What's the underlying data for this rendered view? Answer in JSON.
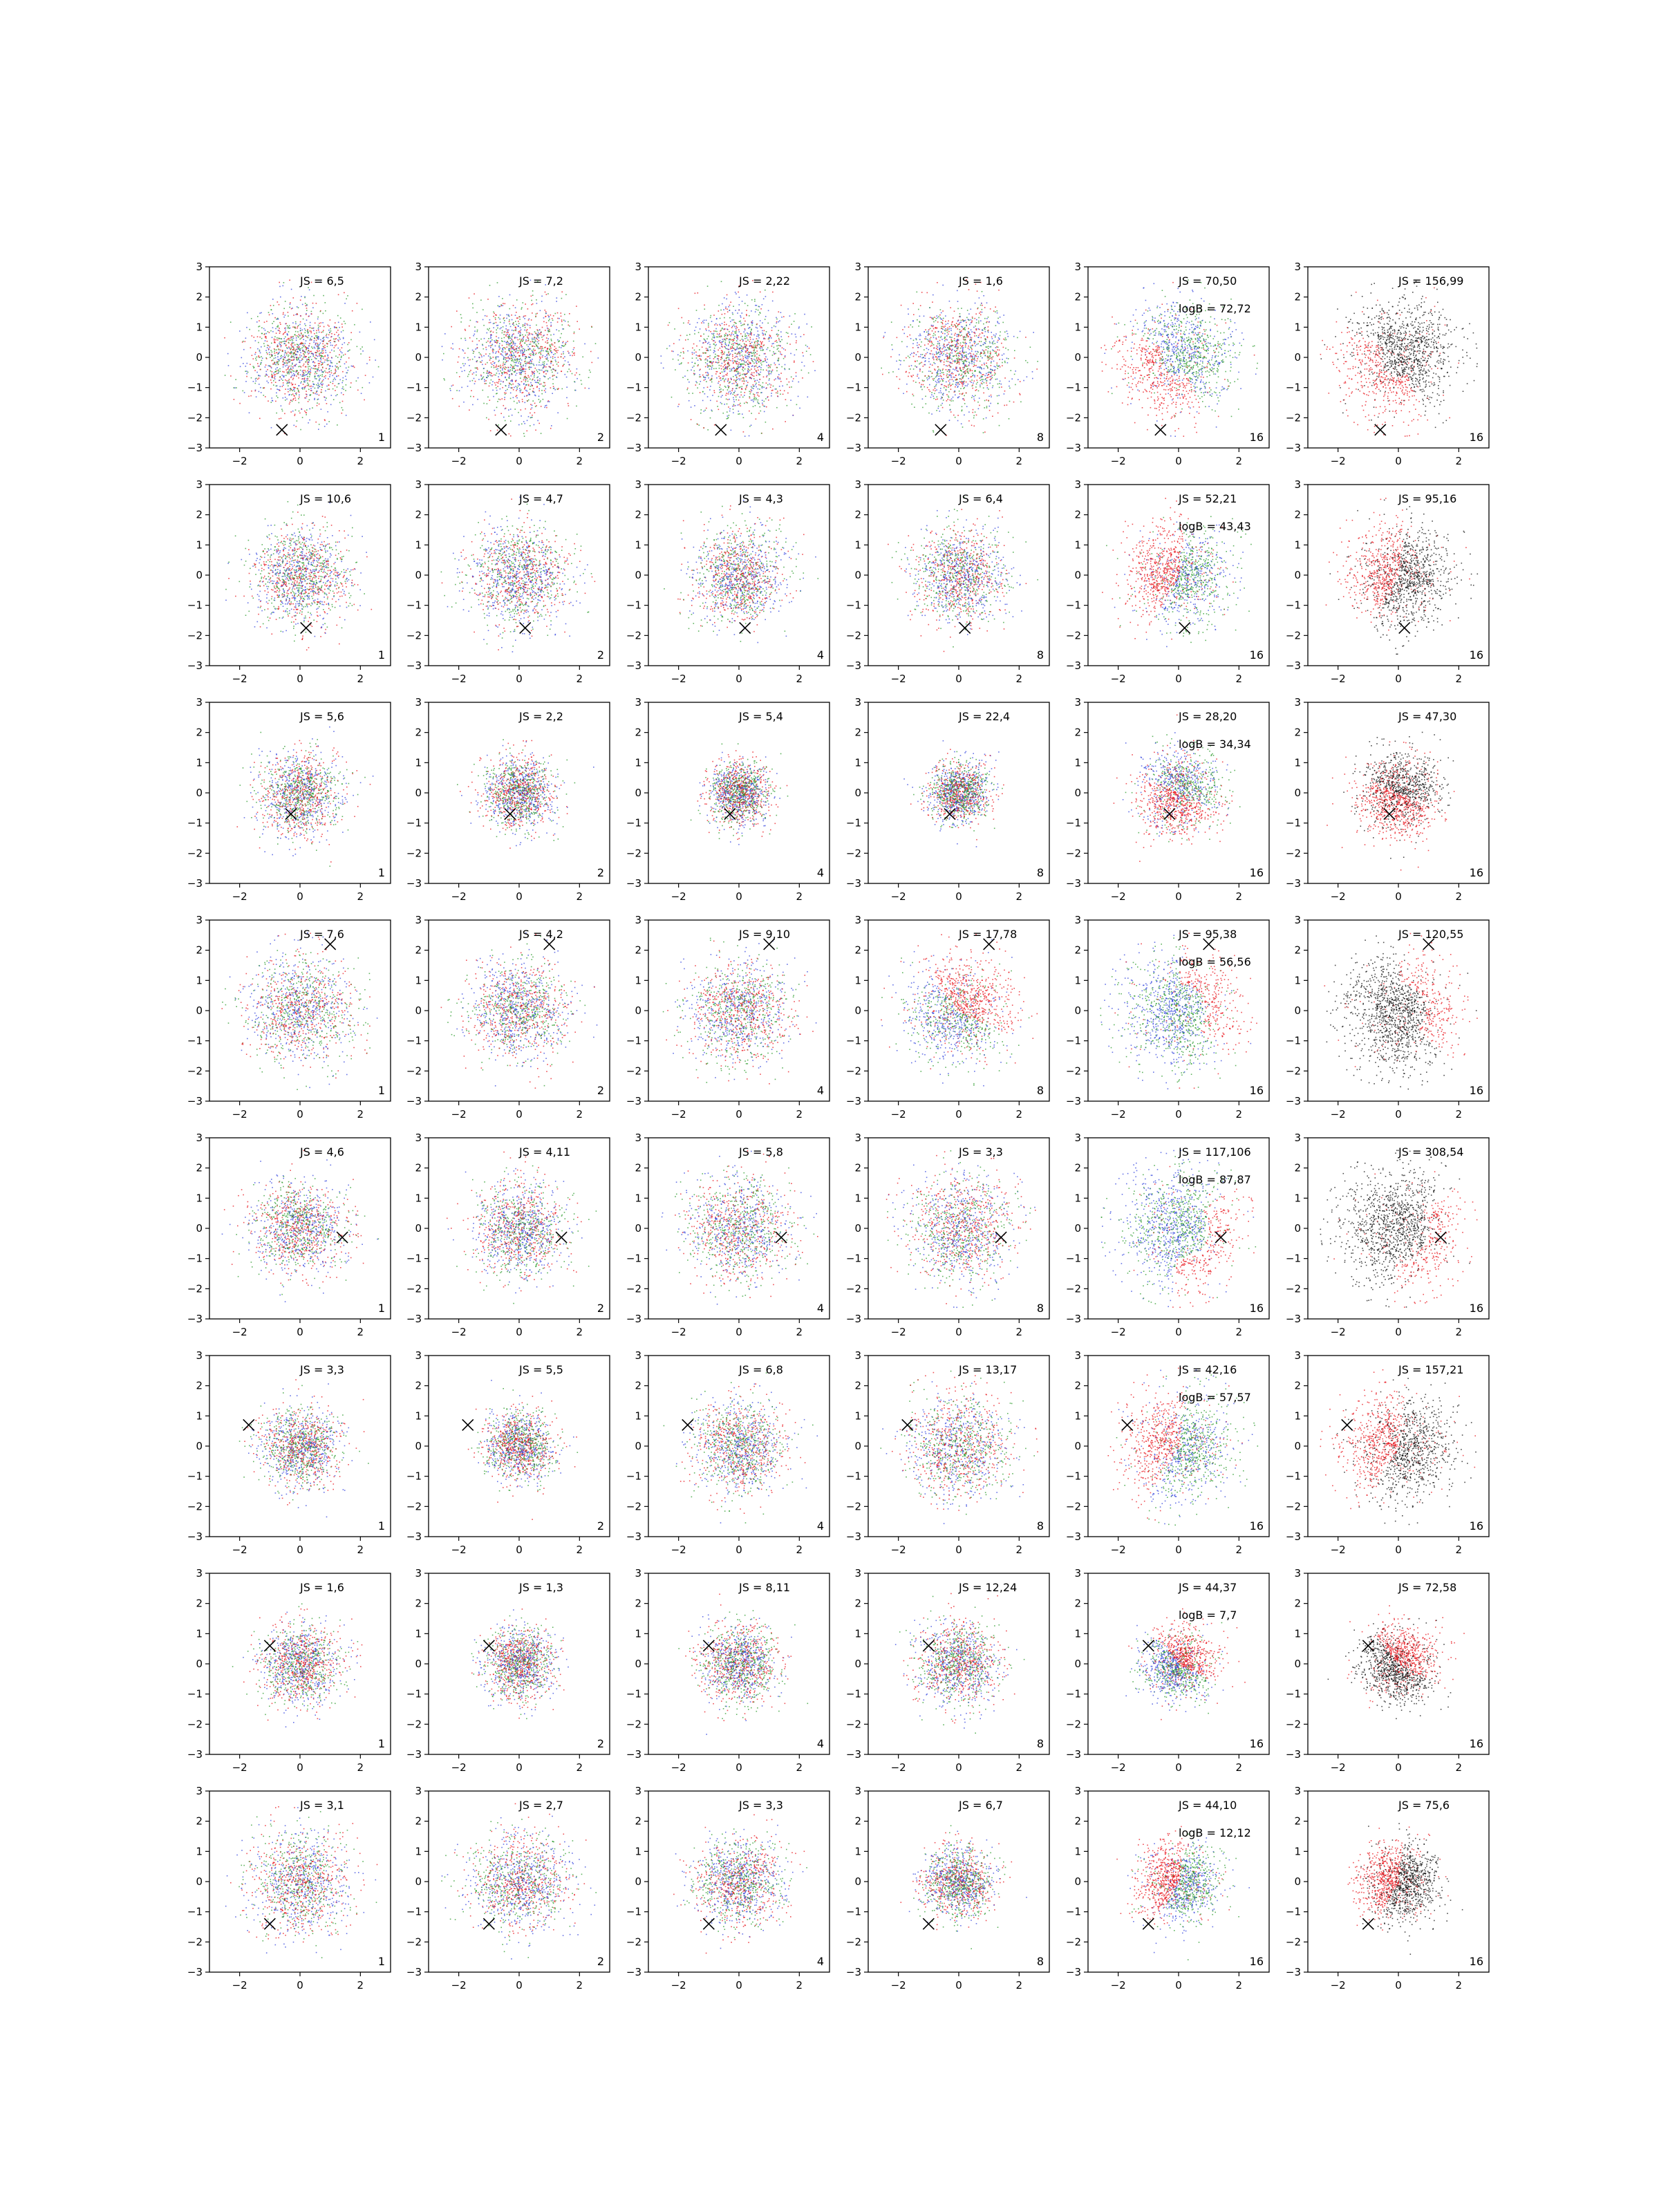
{
  "chart_data": {
    "type": "scatter",
    "rows": 8,
    "cols": 6,
    "xlim": [
      -3,
      3
    ],
    "ylim": [
      -3,
      3
    ],
    "xticks": [
      -2,
      0,
      2
    ],
    "yticks": [
      -3,
      -2,
      -1,
      0,
      1,
      2,
      3
    ],
    "tick_labels_x": [
      "−2",
      "0",
      "2"
    ],
    "tick_labels_y": [
      "−3",
      "−2",
      "−1",
      "0",
      "1",
      "2",
      "3"
    ],
    "grid": false,
    "legend": "none",
    "series_colors": {
      "red": "#e8141c",
      "green": "#2a9a2a",
      "blue": "#3344dd",
      "black": "#111111"
    },
    "marker_symbol": "x",
    "panel_counts": [
      "1",
      "2",
      "4",
      "8",
      "16",
      "16"
    ],
    "panels": [
      {
        "row": 0,
        "col": 0,
        "js": "JS = 6,5",
        "logB": "",
        "count": "1",
        "marker": [
          -0.6,
          -2.4
        ],
        "mode": "mixed",
        "spread": 1.2,
        "pattern": "uniform"
      },
      {
        "row": 0,
        "col": 1,
        "js": "JS = 7,2",
        "logB": "",
        "count": "2",
        "marker": [
          -0.6,
          -2.4
        ],
        "mode": "mixed",
        "spread": 1.25,
        "pattern": "uniform"
      },
      {
        "row": 0,
        "col": 2,
        "js": "JS = 2,22",
        "logB": "",
        "count": "4",
        "marker": [
          -0.6,
          -2.4
        ],
        "mode": "mixed",
        "spread": 1.25,
        "pattern": "uniform"
      },
      {
        "row": 0,
        "col": 3,
        "js": "JS = 1,6",
        "logB": "",
        "count": "8",
        "marker": [
          -0.6,
          -2.4
        ],
        "mode": "mixed",
        "spread": 1.2,
        "pattern": "uniform"
      },
      {
        "row": 0,
        "col": 4,
        "js": "JS = 70,50",
        "logB": "logB = 72,72",
        "count": "16",
        "marker": [
          -0.6,
          -2.4
        ],
        "mode": "cluster",
        "spread": 1.25,
        "pattern": "crescent-lowerleft"
      },
      {
        "row": 0,
        "col": 5,
        "js": "JS = 156,99",
        "logB": "",
        "count": "16",
        "marker": [
          -0.6,
          -2.4
        ],
        "mode": "redblack",
        "spread": 1.25,
        "pattern": "crescent-lowerleft"
      },
      {
        "row": 1,
        "col": 0,
        "js": "JS = 10,6",
        "logB": "",
        "count": "1",
        "marker": [
          0.2,
          -1.75
        ],
        "mode": "mixed",
        "spread": 1.1,
        "pattern": "uniform"
      },
      {
        "row": 1,
        "col": 1,
        "js": "JS = 4,7",
        "logB": "",
        "count": "2",
        "marker": [
          0.2,
          -1.75
        ],
        "mode": "mixed",
        "spread": 1.15,
        "pattern": "uniform"
      },
      {
        "row": 1,
        "col": 2,
        "js": "JS = 4,3",
        "logB": "",
        "count": "4",
        "marker": [
          0.2,
          -1.75
        ],
        "mode": "mixed",
        "spread": 1.05,
        "pattern": "uniform"
      },
      {
        "row": 1,
        "col": 3,
        "js": "JS = 6,4",
        "logB": "",
        "count": "8",
        "marker": [
          0.2,
          -1.75
        ],
        "mode": "mixed",
        "spread": 1.05,
        "pattern": "uniform"
      },
      {
        "row": 1,
        "col": 4,
        "js": "JS = 52,21",
        "logB": "logB = 43,43",
        "count": "16",
        "marker": [
          0.2,
          -1.75
        ],
        "mode": "cluster",
        "spread": 1.1,
        "pattern": "left"
      },
      {
        "row": 1,
        "col": 5,
        "js": "JS = 95,16",
        "logB": "",
        "count": "16",
        "marker": [
          0.2,
          -1.75
        ],
        "mode": "redblack",
        "spread": 1.1,
        "pattern": "left"
      },
      {
        "row": 2,
        "col": 0,
        "js": "JS = 5,6",
        "logB": "",
        "count": "1",
        "marker": [
          -0.3,
          -0.7
        ],
        "mode": "mixed",
        "spread": 0.95,
        "pattern": "uniform"
      },
      {
        "row": 2,
        "col": 1,
        "js": "JS = 2,2",
        "logB": "",
        "count": "2",
        "marker": [
          -0.3,
          -0.7
        ],
        "mode": "mixed",
        "spread": 0.8,
        "pattern": "uniform"
      },
      {
        "row": 2,
        "col": 2,
        "js": "JS = 5,4",
        "logB": "",
        "count": "4",
        "marker": [
          -0.3,
          -0.7
        ],
        "mode": "mixed",
        "spread": 0.7,
        "pattern": "uniform"
      },
      {
        "row": 2,
        "col": 3,
        "js": "JS = 22,4",
        "logB": "",
        "count": "8",
        "marker": [
          -0.3,
          -0.7
        ],
        "mode": "mixed",
        "spread": 0.7,
        "pattern": "uniform"
      },
      {
        "row": 2,
        "col": 4,
        "js": "JS = 28,20",
        "logB": "logB = 34,34",
        "count": "16",
        "marker": [
          -0.3,
          -0.7
        ],
        "mode": "cluster",
        "spread": 0.95,
        "pattern": "lowerleft"
      },
      {
        "row": 2,
        "col": 5,
        "js": "JS = 47,30",
        "logB": "",
        "count": "16",
        "marker": [
          -0.3,
          -0.7
        ],
        "mode": "redblack",
        "spread": 0.95,
        "pattern": "lowerleft"
      },
      {
        "row": 3,
        "col": 0,
        "js": "JS = 7,6",
        "logB": "",
        "count": "1",
        "marker": [
          1.0,
          2.2
        ],
        "mode": "mixed",
        "spread": 1.2,
        "pattern": "uniform"
      },
      {
        "row": 3,
        "col": 1,
        "js": "JS = 4,2",
        "logB": "",
        "count": "2",
        "marker": [
          1.0,
          2.2
        ],
        "mode": "mixed",
        "spread": 1.15,
        "pattern": "uniform"
      },
      {
        "row": 3,
        "col": 2,
        "js": "JS = 9,10",
        "logB": "",
        "count": "4",
        "marker": [
          1.0,
          2.2
        ],
        "mode": "mixed",
        "spread": 1.15,
        "pattern": "uniform"
      },
      {
        "row": 3,
        "col": 3,
        "js": "JS = 17,78",
        "logB": "",
        "count": "8",
        "marker": [
          1.0,
          2.2
        ],
        "mode": "cluster",
        "spread": 1.2,
        "pattern": "upperright"
      },
      {
        "row": 3,
        "col": 4,
        "js": "JS = 95,38",
        "logB": "logB = 56,56",
        "count": "16",
        "marker": [
          1.0,
          2.2
        ],
        "mode": "cluster",
        "spread": 1.25,
        "pattern": "crescent-right"
      },
      {
        "row": 3,
        "col": 5,
        "js": "JS = 120,55",
        "logB": "",
        "count": "16",
        "marker": [
          1.0,
          2.2
        ],
        "mode": "redblack",
        "spread": 1.25,
        "pattern": "crescent-right"
      },
      {
        "row": 4,
        "col": 0,
        "js": "JS = 4,6",
        "logB": "",
        "count": "1",
        "marker": [
          1.4,
          -0.3
        ],
        "mode": "mixed",
        "spread": 1.05,
        "pattern": "uniform"
      },
      {
        "row": 4,
        "col": 1,
        "js": "JS = 4,11",
        "logB": "",
        "count": "2",
        "marker": [
          1.4,
          -0.3
        ],
        "mode": "mixed",
        "spread": 1.05,
        "pattern": "uniform"
      },
      {
        "row": 4,
        "col": 2,
        "js": "JS = 5,8",
        "logB": "",
        "count": "4",
        "marker": [
          1.4,
          -0.3
        ],
        "mode": "mixed",
        "spread": 1.2,
        "pattern": "uniform"
      },
      {
        "row": 4,
        "col": 3,
        "js": "JS = 3,3",
        "logB": "",
        "count": "8",
        "marker": [
          1.4,
          -0.3
        ],
        "mode": "mixed",
        "spread": 1.2,
        "pattern": "uniform"
      },
      {
        "row": 4,
        "col": 4,
        "js": "JS = 117,106",
        "logB": "logB = 87,87",
        "count": "16",
        "marker": [
          1.4,
          -0.3
        ],
        "mode": "cluster",
        "spread": 1.35,
        "pattern": "crescent-right-low"
      },
      {
        "row": 4,
        "col": 5,
        "js": "JS = 308,54",
        "logB": "",
        "count": "16",
        "marker": [
          1.4,
          -0.3
        ],
        "mode": "redblack",
        "spread": 1.35,
        "pattern": "crescent-right-low"
      },
      {
        "row": 5,
        "col": 0,
        "js": "JS = 3,3",
        "logB": "",
        "count": "1",
        "marker": [
          -1.7,
          0.7
        ],
        "mode": "mixed",
        "spread": 0.9,
        "pattern": "uniform"
      },
      {
        "row": 5,
        "col": 1,
        "js": "JS = 5,5",
        "logB": "",
        "count": "2",
        "marker": [
          -1.7,
          0.7
        ],
        "mode": "mixed",
        "spread": 0.8,
        "pattern": "uniform"
      },
      {
        "row": 5,
        "col": 2,
        "js": "JS = 6,8",
        "logB": "",
        "count": "4",
        "marker": [
          -1.7,
          0.7
        ],
        "mode": "mixed",
        "spread": 1.05,
        "pattern": "uniform"
      },
      {
        "row": 5,
        "col": 3,
        "js": "JS = 13,17",
        "logB": "",
        "count": "8",
        "marker": [
          -1.7,
          0.7
        ],
        "mode": "mixed",
        "spread": 1.2,
        "pattern": "uniform"
      },
      {
        "row": 5,
        "col": 4,
        "js": "JS = 42,16",
        "logB": "logB = 57,57",
        "count": "16",
        "marker": [
          -1.7,
          0.7
        ],
        "mode": "cluster",
        "spread": 1.2,
        "pattern": "left"
      },
      {
        "row": 5,
        "col": 5,
        "js": "JS = 157,21",
        "logB": "",
        "count": "16",
        "marker": [
          -1.7,
          0.7
        ],
        "mode": "redblack",
        "spread": 1.2,
        "pattern": "left"
      },
      {
        "row": 6,
        "col": 0,
        "js": "JS = 1,6",
        "logB": "",
        "count": "1",
        "marker": [
          -1.0,
          0.6
        ],
        "mode": "mixed",
        "spread": 0.9,
        "pattern": "uniform"
      },
      {
        "row": 6,
        "col": 1,
        "js": "JS = 1,3",
        "logB": "",
        "count": "2",
        "marker": [
          -1.0,
          0.6
        ],
        "mode": "mixed",
        "spread": 0.8,
        "pattern": "uniform"
      },
      {
        "row": 6,
        "col": 2,
        "js": "JS = 8,11",
        "logB": "",
        "count": "4",
        "marker": [
          -1.0,
          0.6
        ],
        "mode": "mixed",
        "spread": 0.9,
        "pattern": "uniform"
      },
      {
        "row": 6,
        "col": 3,
        "js": "JS = 12,24",
        "logB": "",
        "count": "8",
        "marker": [
          -1.0,
          0.6
        ],
        "mode": "mixed",
        "spread": 0.95,
        "pattern": "uniform"
      },
      {
        "row": 6,
        "col": 4,
        "js": "JS = 44,37",
        "logB": "logB = 7,7",
        "count": "16",
        "marker": [
          -1.0,
          0.6
        ],
        "mode": "cluster",
        "spread": 0.8,
        "pattern": "upperright"
      },
      {
        "row": 6,
        "col": 5,
        "js": "JS = 72,58",
        "logB": "",
        "count": "16",
        "marker": [
          -1.0,
          0.6
        ],
        "mode": "redblack",
        "spread": 0.85,
        "pattern": "upperright"
      },
      {
        "row": 7,
        "col": 0,
        "js": "JS = 3,1",
        "logB": "",
        "count": "1",
        "marker": [
          -1.0,
          -1.4
        ],
        "mode": "mixed",
        "spread": 1.15,
        "pattern": "uniform"
      },
      {
        "row": 7,
        "col": 1,
        "js": "JS = 2,7",
        "logB": "",
        "count": "2",
        "marker": [
          -1.0,
          -1.4
        ],
        "mode": "mixed",
        "spread": 1.1,
        "pattern": "uniform"
      },
      {
        "row": 7,
        "col": 2,
        "js": "JS = 3,3",
        "logB": "",
        "count": "4",
        "marker": [
          -1.0,
          -1.4
        ],
        "mode": "mixed",
        "spread": 1.0,
        "pattern": "uniform"
      },
      {
        "row": 7,
        "col": 3,
        "js": "JS = 6,7",
        "logB": "",
        "count": "8",
        "marker": [
          -1.0,
          -1.4
        ],
        "mode": "mixed",
        "spread": 0.8,
        "pattern": "uniform"
      },
      {
        "row": 7,
        "col": 4,
        "js": "JS = 44,10",
        "logB": "logB = 12,12",
        "count": "16",
        "marker": [
          -1.0,
          -1.4
        ],
        "mode": "cluster",
        "spread": 0.9,
        "pattern": "left"
      },
      {
        "row": 7,
        "col": 5,
        "js": "JS = 75,6",
        "logB": "",
        "count": "16",
        "marker": [
          -1.0,
          -1.4
        ],
        "mode": "redblack",
        "spread": 0.85,
        "pattern": "left"
      }
    ]
  }
}
